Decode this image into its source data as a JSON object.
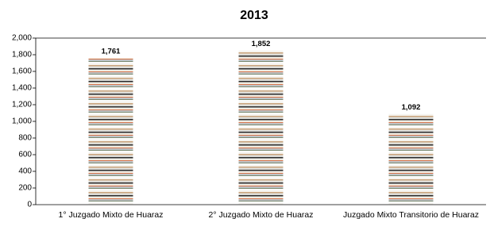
{
  "chart_data": {
    "type": "bar",
    "title": "2013",
    "categories": [
      "1° Juzgado Mixto de Huaraz",
      "2° Juzgado Mixto de Huaraz",
      "Juzgado Mixto Transitorio de Huaraz"
    ],
    "values": [
      1761,
      1852,
      1092
    ],
    "value_labels": [
      "1,761",
      "1,852",
      "1,092"
    ],
    "ylim": [
      0,
      2000
    ],
    "yticks": [
      0,
      200,
      400,
      600,
      800,
      {
        "value": 1000,
        "label": "1,000"
      },
      {
        "value": 1200,
        "label": "1,200"
      },
      {
        "value": 1400,
        "label": "1,400"
      },
      {
        "value": 1600,
        "label": "1,600"
      },
      {
        "value": 1800,
        "label": "1,800"
      },
      {
        "value": 2000,
        "label": "2,000"
      }
    ],
    "grid": false
  }
}
